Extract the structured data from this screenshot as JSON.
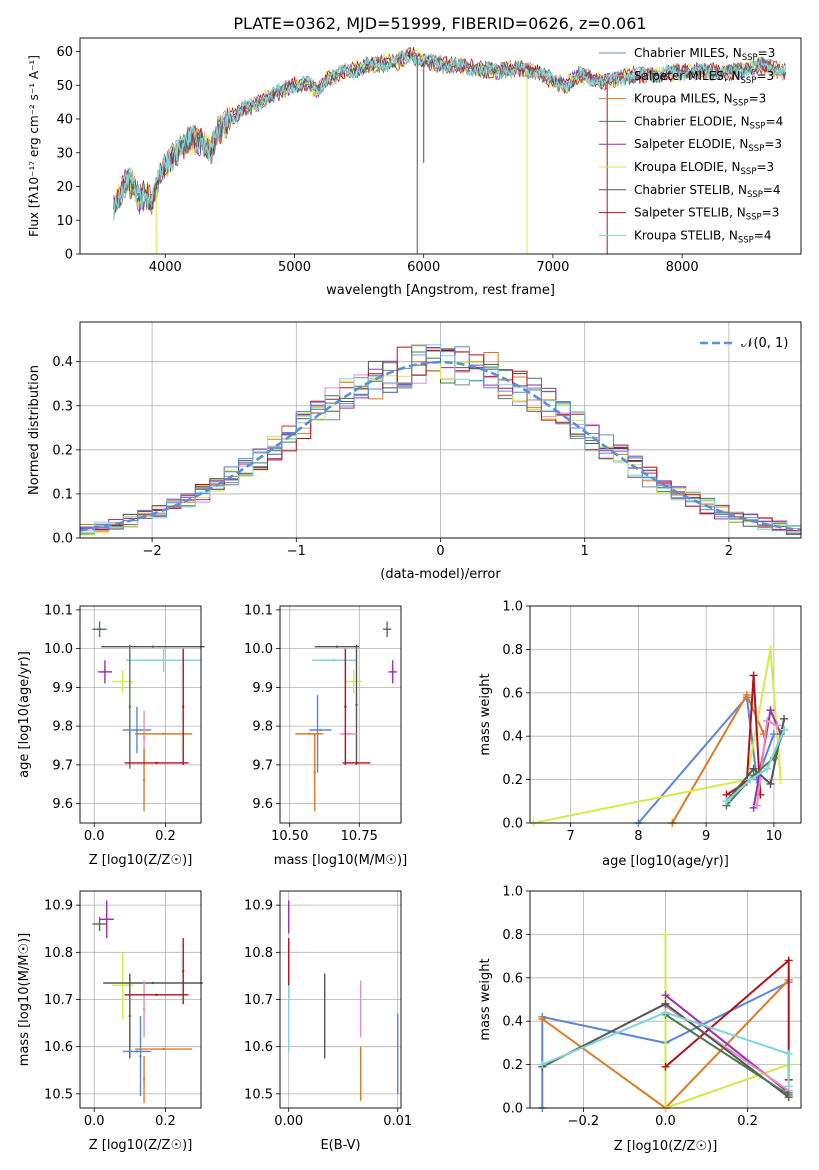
{
  "figure": {
    "title": "PLATE=0362, MJD=51999, FIBERID=0626, z=0.061"
  },
  "colors": {
    "Chabrier MILES": "#6b8fa8",
    "Salpeter MILES": "#e58fc2",
    "Kroupa MILES": "#e07a22",
    "Chabrier ELODIE": "#4d7a4d",
    "Salpeter ELODIE": "#9a2fb3",
    "Kroupa ELODIE": "#d4ea4a",
    "Chabrier STELIB": "#555555",
    "Salpeter STELIB": "#b3121d",
    "Kroupa STELIB": "#7fd6d6",
    "blue": "#5b87d9",
    "gaussian": "#5b8fd9",
    "grid": "#b0b0b0"
  },
  "chart_data": [
    {
      "id": "spectrum",
      "type": "line",
      "xlabel": "wavelength [Angstrom, rest frame]",
      "ylabel": "Flux [fλ10⁻¹⁷ erg cm⁻² s⁻¹ A⁻¹]",
      "xlim": [
        3340,
        8920
      ],
      "ylim": [
        0,
        64
      ],
      "xticks": [
        4000,
        5000,
        6000,
        7000,
        8000
      ],
      "yticks": [
        0,
        10,
        20,
        30,
        40,
        50,
        60
      ],
      "legend_position": "top-right",
      "legend": [
        {
          "name": "Chabrier MILES, NSSP=3",
          "label": "Chabrier MILES, N",
          "sub": "SSP",
          "suffix": "=3",
          "color": "#6b8fa8"
        },
        {
          "name": "Salpeter MILES, NSSP=3",
          "label": "Salpeter MILES, N",
          "sub": "SSP",
          "suffix": "=3",
          "color": "#e58fc2"
        },
        {
          "name": "Kroupa MILES, NSSP=3",
          "label": "Kroupa MILES, N",
          "sub": "SSP",
          "suffix": "=3",
          "color": "#e07a22"
        },
        {
          "name": "Chabrier ELODIE, NSSP=4",
          "label": "Chabrier ELODIE, N",
          "sub": "SSP",
          "suffix": "=4",
          "color": "#4d7a4d"
        },
        {
          "name": "Salpeter ELODIE, NSSP=3",
          "label": "Salpeter ELODIE, N",
          "sub": "SSP",
          "suffix": "=3",
          "color": "#9a2fb3"
        },
        {
          "name": "Kroupa ELODIE, NSSP=3",
          "label": "Kroupa ELODIE, N",
          "sub": "SSP",
          "suffix": "=3",
          "color": "#d4ea4a"
        },
        {
          "name": "Chabrier STELIB, NSSP=4",
          "label": "Chabrier STELIB, N",
          "sub": "SSP",
          "suffix": "=4",
          "color": "#555555"
        },
        {
          "name": "Salpeter STELIB, NSSP=3",
          "label": "Salpeter STELIB, N",
          "sub": "SSP",
          "suffix": "=3",
          "color": "#b3121d"
        },
        {
          "name": "Kroupa STELIB, NSSP=4",
          "label": "Kroupa STELIB, N",
          "sub": "SSP",
          "suffix": "=4",
          "color": "#7fd6d6"
        }
      ],
      "continuum": [
        [
          3600,
          14
        ],
        [
          3650,
          17
        ],
        [
          3700,
          22
        ],
        [
          3750,
          20
        ],
        [
          3800,
          16
        ],
        [
          3850,
          18
        ],
        [
          3900,
          15
        ],
        [
          3950,
          22
        ],
        [
          4000,
          26
        ],
        [
          4100,
          31
        ],
        [
          4200,
          34
        ],
        [
          4300,
          33
        ],
        [
          4350,
          30
        ],
        [
          4400,
          36
        ],
        [
          4500,
          40
        ],
        [
          4600,
          43
        ],
        [
          4700,
          44
        ],
        [
          4800,
          47
        ],
        [
          4900,
          48
        ],
        [
          5000,
          50
        ],
        [
          5100,
          51
        ],
        [
          5170,
          48
        ],
        [
          5250,
          52
        ],
        [
          5400,
          54
        ],
        [
          5600,
          56
        ],
        [
          5800,
          57
        ],
        [
          5900,
          59
        ],
        [
          6000,
          57
        ],
        [
          6200,
          56
        ],
        [
          6400,
          55
        ],
        [
          6563,
          54
        ],
        [
          6700,
          55
        ],
        [
          6900,
          54
        ],
        [
          7000,
          51
        ],
        [
          7100,
          50
        ],
        [
          7200,
          53
        ],
        [
          7300,
          52
        ],
        [
          7400,
          51
        ],
        [
          7600,
          53
        ],
        [
          7800,
          53
        ],
        [
          8000,
          54
        ],
        [
          8200,
          54
        ],
        [
          8400,
          54
        ],
        [
          8600,
          56
        ],
        [
          8800,
          54
        ]
      ],
      "spikes": [
        {
          "x": 3930,
          "y": 0,
          "color": "#d4ea4a"
        },
        {
          "x": 5950,
          "y": 0,
          "color": "#555555"
        },
        {
          "x": 6000,
          "y": 27,
          "color": "#555555"
        },
        {
          "x": 6800,
          "y": 0,
          "color": "#d4ea4a"
        },
        {
          "x": 7420,
          "y": 0,
          "color": "#b3121d"
        }
      ]
    },
    {
      "id": "residuals",
      "type": "bar",
      "xlabel": "(data-model)/error",
      "ylabel": "Normed distribution",
      "xlim": [
        -2.5,
        2.5
      ],
      "ylim": [
        0,
        0.49
      ],
      "xticks": [
        -2,
        -1,
        0,
        1,
        2
      ],
      "yticks": [
        0.0,
        0.1,
        0.2,
        0.3,
        0.4
      ],
      "legend_position": "top-right",
      "gaussian_label": "𝒩(0, 1)"
    },
    {
      "id": "age-vs-Z",
      "type": "scatter",
      "xlabel": "Z [log10(Z/Z☉)]",
      "ylabel": "age [log10(age/yr)]",
      "xlim": [
        -0.04,
        0.3
      ],
      "ylim": [
        9.55,
        10.11
      ],
      "xticks": [
        0.0,
        0.2
      ],
      "yticks": [
        9.6,
        9.7,
        9.8,
        9.9,
        10.0,
        10.1
      ],
      "points": [
        {
          "x": 0.015,
          "y": 10.05,
          "xerr": 0.02,
          "yerr": 0.02,
          "color": "#4d7a4d"
        },
        {
          "x": 0.03,
          "y": 9.94,
          "xerr": 0.02,
          "yerr": 0.03,
          "color": "#9a2fb3"
        },
        {
          "x": 0.08,
          "y": 9.915,
          "xerr": 0.03,
          "yerr": 0.03,
          "color": "#d4ea4a"
        },
        {
          "x": 0.195,
          "y": 9.97,
          "xerr": 0.105,
          "yerr": 0.03,
          "color": "#7fd6d6"
        },
        {
          "x": 0.165,
          "y": 10.005,
          "xerr": 0.145,
          "yerr": 0.0,
          "color": "#555555"
        },
        {
          "x": 0.1,
          "y": 9.85,
          "xerr": 0.0,
          "yerr": 0.16,
          "color": "#4d7a4d"
        },
        {
          "x": 0.12,
          "y": 9.79,
          "xerr": 0.04,
          "yerr": 0.06,
          "color": "#5b87d9"
        },
        {
          "x": 0.14,
          "y": 9.77,
          "xerr": 0.0,
          "yerr": 0.07,
          "color": "#e58fc2"
        },
        {
          "x": 0.195,
          "y": 9.78,
          "xerr": 0.08,
          "yerr": 0.0,
          "color": "#e07a22"
        },
        {
          "x": 0.14,
          "y": 9.66,
          "xerr": 0.0,
          "yerr": 0.08,
          "color": "#e07a22"
        },
        {
          "x": 0.175,
          "y": 9.705,
          "xerr": 0.09,
          "yerr": 0.0,
          "color": "#b3121d"
        },
        {
          "x": 0.25,
          "y": 9.85,
          "xerr": 0.0,
          "yerr": 0.15,
          "color": "#b3121d"
        }
      ]
    },
    {
      "id": "age-vs-mass",
      "type": "scatter",
      "xlabel": "mass [log10(M/M☉)]",
      "ylabel": "",
      "xlim": [
        10.465,
        10.9
      ],
      "ylim": [
        9.55,
        10.11
      ],
      "xticks": [
        10.5,
        10.75
      ],
      "yticks": [
        9.6,
        9.7,
        9.8,
        9.9,
        10.0,
        10.1
      ],
      "points": [
        {
          "x": 10.85,
          "y": 10.05,
          "xerr": 0.015,
          "yerr": 0.02,
          "color": "#4d7a4d"
        },
        {
          "x": 10.87,
          "y": 9.94,
          "xerr": 0.015,
          "yerr": 0.03,
          "color": "#9a2fb3"
        },
        {
          "x": 10.73,
          "y": 9.915,
          "xerr": 0.03,
          "yerr": 0.03,
          "color": "#d4ea4a"
        },
        {
          "x": 10.66,
          "y": 9.97,
          "xerr": 0.08,
          "yerr": 0.0,
          "color": "#7fd6d6"
        },
        {
          "x": 10.67,
          "y": 10.005,
          "xerr": 0.08,
          "yerr": 0.0,
          "color": "#555555"
        },
        {
          "x": 10.74,
          "y": 9.855,
          "xerr": 0.0,
          "yerr": 0.155,
          "color": "#555555"
        },
        {
          "x": 10.6,
          "y": 9.78,
          "xerr": 0.0,
          "yerr": 0.1,
          "color": "#5b87d9"
        },
        {
          "x": 10.61,
          "y": 9.79,
          "xerr": 0.04,
          "yerr": 0.0,
          "color": "#5b87d9"
        },
        {
          "x": 10.71,
          "y": 9.78,
          "xerr": 0.03,
          "yerr": 0.0,
          "color": "#e58fc2"
        },
        {
          "x": 10.59,
          "y": 9.68,
          "xerr": 0.0,
          "yerr": 0.1,
          "color": "#e07a22"
        },
        {
          "x": 10.57,
          "y": 9.78,
          "xerr": 0.05,
          "yerr": 0.0,
          "color": "#e07a22"
        },
        {
          "x": 10.7,
          "y": 9.85,
          "xerr": 0.0,
          "yerr": 0.15,
          "color": "#b3121d"
        },
        {
          "x": 10.74,
          "y": 9.705,
          "xerr": 0.05,
          "yerr": 0.0,
          "color": "#b3121d"
        }
      ]
    },
    {
      "id": "weight-vs-age",
      "type": "line",
      "xlabel": "age [log10(age/yr)]",
      "ylabel": "mass weight",
      "xlim": [
        6.4,
        10.4
      ],
      "ylim": [
        0,
        1
      ],
      "xticks": [
        7,
        8,
        9,
        10
      ],
      "yticks": [
        0.0,
        0.2,
        0.4,
        0.6,
        0.8,
        1.0
      ],
      "series": [
        {
          "color": "#5b87d9",
          "x": [
            8.0,
            9.6,
            9.75,
            10.0
          ],
          "y": [
            0.0,
            0.58,
            0.2,
            0.41
          ]
        },
        {
          "color": "#e07a22",
          "x": [
            8.5,
            9.6,
            9.85
          ],
          "y": [
            0.0,
            0.59,
            0.41
          ]
        },
        {
          "color": "#d4ea4a",
          "x": [
            6.45,
            9.6,
            9.95,
            10.1
          ],
          "y": [
            0.0,
            0.2,
            0.8,
            0.2
          ]
        },
        {
          "color": "#b3121d",
          "x": [
            9.3,
            9.6,
            9.7,
            9.8
          ],
          "y": [
            0.13,
            0.19,
            0.68,
            0.13
          ]
        },
        {
          "color": "#9a2fb3",
          "x": [
            9.7,
            9.95,
            10.1
          ],
          "y": [
            0.07,
            0.52,
            0.41
          ]
        },
        {
          "color": "#e58fc2",
          "x": [
            9.75,
            9.9,
            10.05
          ],
          "y": [
            0.08,
            0.47,
            0.45
          ]
        },
        {
          "color": "#555555",
          "x": [
            9.3,
            9.7,
            9.95,
            10.15
          ],
          "y": [
            0.1,
            0.25,
            0.18,
            0.48
          ]
        },
        {
          "color": "#4d7a4d",
          "x": [
            9.3,
            9.7,
            10.0,
            10.15
          ],
          "y": [
            0.08,
            0.22,
            0.3,
            0.43
          ]
        },
        {
          "color": "#7fd6d6",
          "x": [
            9.3,
            9.65,
            9.9,
            10.15
          ],
          "y": [
            0.1,
            0.2,
            0.25,
            0.43
          ]
        }
      ]
    },
    {
      "id": "mass-vs-Z",
      "type": "scatter",
      "xlabel": "Z [log10(Z/Z☉)]",
      "ylabel": "mass [log10(M/M☉)]",
      "xlim": [
        -0.04,
        0.3
      ],
      "ylim": [
        10.47,
        10.93
      ],
      "xticks": [
        0.0,
        0.2
      ],
      "yticks": [
        10.5,
        10.6,
        10.7,
        10.8,
        10.9
      ],
      "points": [
        {
          "x": 0.015,
          "y": 10.86,
          "xerr": 0.02,
          "yerr": 0.015,
          "color": "#4d7a4d"
        },
        {
          "x": 0.035,
          "y": 10.87,
          "xerr": 0.02,
          "yerr": 0.04,
          "color": "#9a2fb3"
        },
        {
          "x": 0.08,
          "y": 10.73,
          "xerr": 0.03,
          "yerr": 0.07,
          "color": "#d4ea4a"
        },
        {
          "x": 0.165,
          "y": 10.735,
          "xerr": 0.14,
          "yerr": 0.0,
          "color": "#555555"
        },
        {
          "x": 0.1,
          "y": 10.665,
          "xerr": 0.0,
          "yerr": 0.09,
          "color": "#555555"
        },
        {
          "x": 0.14,
          "y": 10.68,
          "xerr": 0.0,
          "yerr": 0.06,
          "color": "#e58fc2"
        },
        {
          "x": 0.12,
          "y": 10.59,
          "xerr": 0.04,
          "yerr": 0.0,
          "color": "#5b87d9"
        },
        {
          "x": 0.13,
          "y": 10.58,
          "xerr": 0.0,
          "yerr": 0.085,
          "color": "#5b87d9"
        },
        {
          "x": 0.195,
          "y": 10.595,
          "xerr": 0.08,
          "yerr": 0.0,
          "color": "#e07a22"
        },
        {
          "x": 0.14,
          "y": 10.53,
          "xerr": 0.0,
          "yerr": 0.05,
          "color": "#e07a22"
        },
        {
          "x": 0.175,
          "y": 10.71,
          "xerr": 0.09,
          "yerr": 0.0,
          "color": "#b3121d"
        },
        {
          "x": 0.25,
          "y": 10.76,
          "xerr": 0.0,
          "yerr": 0.07,
          "color": "#b3121d"
        }
      ]
    },
    {
      "id": "mass-vs-EBV",
      "type": "scatter",
      "xlabel": "E(B-V)",
      "ylabel": "",
      "xlim": [
        -0.0008,
        0.0103
      ],
      "ylim": [
        10.47,
        10.93
      ],
      "xticks": [
        0.0,
        0.01
      ],
      "xticklabels": [
        "0.00",
        "0.01"
      ],
      "yticks": [
        10.5,
        10.6,
        10.7,
        10.8,
        10.9
      ],
      "segments": [
        {
          "x": 0.0,
          "y0": 10.84,
          "y1": 10.91,
          "color": "#9a2fb3"
        },
        {
          "x": 0.0,
          "y0": 10.7,
          "y1": 10.83,
          "color": "#b3121d"
        },
        {
          "x": 0.0,
          "y0": 10.59,
          "y1": 10.73,
          "color": "#7fd6d6"
        },
        {
          "x": 0.0033,
          "y0": 10.575,
          "y1": 10.755,
          "color": "#555555"
        },
        {
          "x": 0.0066,
          "y0": 10.62,
          "y1": 10.74,
          "color": "#e58fc2"
        },
        {
          "x": 0.0066,
          "y0": 10.485,
          "y1": 10.6,
          "color": "#e07a22"
        },
        {
          "x": 0.01,
          "y0": 10.5,
          "y1": 10.67,
          "color": "#5b87d9"
        }
      ]
    },
    {
      "id": "weight-vs-Z",
      "type": "line",
      "xlabel": "Z [log10(Z/Z☉)]",
      "ylabel": "mass weight",
      "xlim": [
        -0.33,
        0.33
      ],
      "ylim": [
        0,
        1
      ],
      "xticks": [
        -0.2,
        0.0,
        0.2
      ],
      "xticklabels": [
        "−0.2",
        "0.0",
        "0.2"
      ],
      "yticks": [
        0.0,
        0.2,
        0.4,
        0.6,
        0.8,
        1.0
      ],
      "series": [
        {
          "color": "#5b87d9",
          "x": [
            -0.3,
            -0.3,
            0.0,
            0.3
          ],
          "y": [
            0.0,
            0.42,
            0.3,
            0.58
          ]
        },
        {
          "color": "#e07a22",
          "x": [
            -0.3,
            0.0,
            0.3
          ],
          "y": [
            0.41,
            0.0,
            0.59
          ]
        },
        {
          "color": "#d4ea4a",
          "x": [
            0.0,
            0.0,
            0.3
          ],
          "y": [
            0.8,
            0.0,
            0.2
          ]
        },
        {
          "color": "#b3121d",
          "x": [
            0.0,
            0.3,
            0.3
          ],
          "y": [
            0.19,
            0.68,
            0.13
          ]
        },
        {
          "color": "#9a2fb3",
          "x": [
            0.0,
            0.3
          ],
          "y": [
            0.52,
            0.07
          ]
        },
        {
          "color": "#e58fc2",
          "x": [
            0.0,
            0.3
          ],
          "y": [
            0.47,
            0.08
          ]
        },
        {
          "color": "#555555",
          "x": [
            -0.3,
            0.0,
            0.3
          ],
          "y": [
            0.19,
            0.48,
            0.05
          ]
        },
        {
          "color": "#4d7a4d",
          "x": [
            0.0,
            0.3
          ],
          "y": [
            0.43,
            0.06
          ]
        },
        {
          "color": "#7fd6d6",
          "x": [
            -0.3,
            0.0,
            0.3,
            0.3
          ],
          "y": [
            0.2,
            0.44,
            0.25,
            0.1
          ]
        }
      ]
    }
  ]
}
